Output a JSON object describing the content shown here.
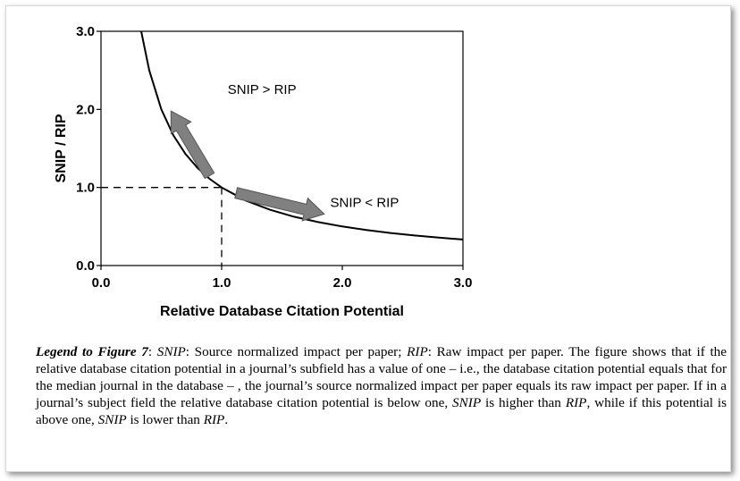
{
  "chart_data": {
    "type": "line",
    "xlabel": "Relative Database Citation Potential",
    "ylabel": "SNIP / RIP",
    "xlim": [
      0,
      3
    ],
    "ylim": [
      0,
      3
    ],
    "x_ticks": [
      "0.0",
      "1.0",
      "2.0",
      "3.0"
    ],
    "y_ticks": [
      "0.0",
      "1.0",
      "2.0",
      "3.0"
    ],
    "grid": false,
    "legend": "none",
    "series": [
      {
        "x": [
          0.333,
          0.4,
          0.5,
          0.6,
          0.7,
          0.8,
          0.9,
          1.0,
          1.2,
          1.4,
          1.6,
          1.8,
          2.0,
          2.2,
          2.4,
          2.6,
          2.8,
          3.0
        ],
        "y": [
          3.0,
          2.5,
          2.0,
          1.667,
          1.429,
          1.25,
          1.111,
          1.0,
          0.833,
          0.714,
          0.625,
          0.556,
          0.5,
          0.455,
          0.417,
          0.385,
          0.357,
          0.333
        ]
      }
    ],
    "reference_point": {
      "x": 1.0,
      "y": 1.0
    },
    "annotations": [
      {
        "text": "SNIP > RIP",
        "x": 1.05,
        "y": 2.2
      },
      {
        "text": "SNIP < RIP",
        "x": 1.9,
        "y": 0.75
      }
    ],
    "arrows": [
      {
        "from": [
          0.9,
          1.15
        ],
        "to": [
          0.58,
          1.98
        ]
      },
      {
        "from": [
          1.12,
          0.93
        ],
        "to": [
          1.85,
          0.66
        ]
      }
    ],
    "colors": {
      "line": "#000000",
      "arrow_fill": "#808080",
      "arrow_stroke": "#555555"
    }
  },
  "caption": {
    "legend_title": "Legend to Figure 7",
    "p1": ": ",
    "snip": "SNIP",
    "p2": ": Source normalized impact per paper; ",
    "rip": "RIP",
    "p3": ": Raw impact per paper. The figure shows that if the relative database citation potential in a journal’s subfield has a value of one – i.e., the database citation potential equals that for the median journal in the database – , the journal’s source normalized impact per paper equals its raw impact per paper. If in a journal’s subject field the relative database citation potential is below one, ",
    "snip2": "SNIP",
    "p4": " is higher than ",
    "rip2": "RIP",
    "p5": ", while if this potential is above one, ",
    "snip3": "SNIP",
    "p6": " is lower than ",
    "rip3": "RIP",
    "p7": "."
  }
}
